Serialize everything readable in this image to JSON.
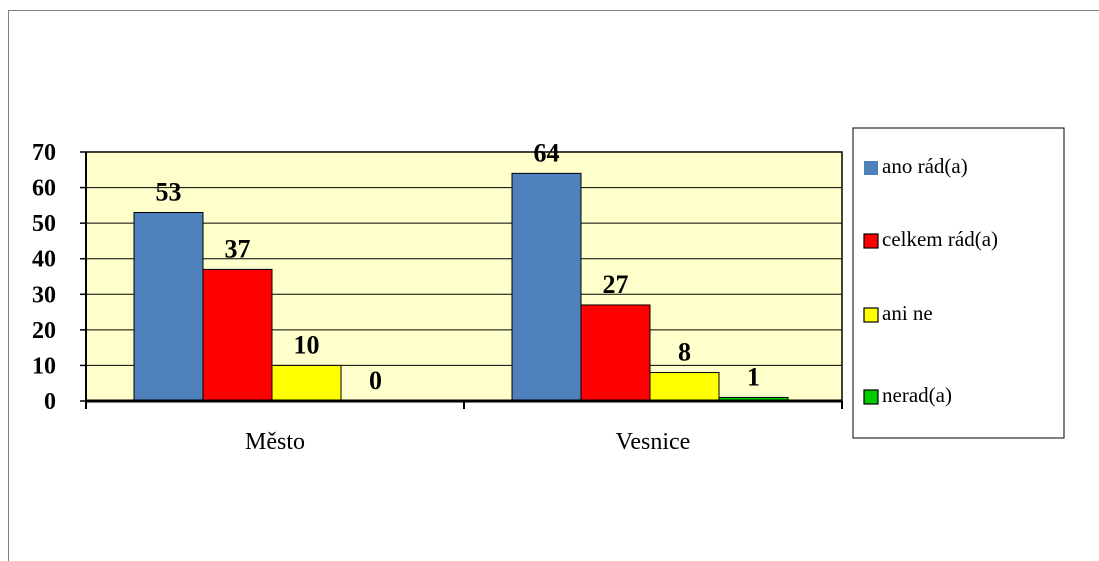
{
  "chart_data": {
    "type": "bar",
    "title": "",
    "xlabel": "",
    "ylabel": "",
    "categories": [
      "Město",
      "Vesnice"
    ],
    "ylim": [
      0,
      70
    ],
    "yticks": [
      0,
      10,
      20,
      30,
      40,
      50,
      60,
      70
    ],
    "grid": true,
    "legend_position": "right",
    "plot_background": "#ffffcc",
    "series": [
      {
        "name": "ano rád(a)",
        "color": "#4f81bd",
        "values": [
          53,
          64
        ]
      },
      {
        "name": "celkem rád(a)",
        "color": "#ff0000",
        "values": [
          37,
          27
        ]
      },
      {
        "name": "ani ne",
        "color": "#ffff00",
        "values": [
          10,
          8
        ]
      },
      {
        "name": "nerad(a)",
        "color": "#00cc00",
        "values": [
          0,
          1
        ]
      }
    ]
  }
}
